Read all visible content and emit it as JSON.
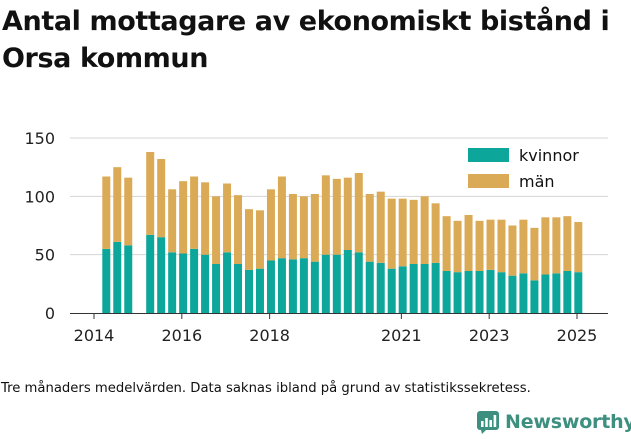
{
  "title": "Antal mottagare av ekonomiskt bistånd i Orsa kommun",
  "footnote": "Tre månaders medelvärden. Data saknas ibland på grund av statistikssekretess.",
  "brand": {
    "name": "Newsworthy"
  },
  "colors": {
    "kvinnor": "#0da69b",
    "man": "#dbaa56",
    "grid": "#d4d4d4",
    "axis": "#333333",
    "brand": "#3d8f80"
  },
  "chart_data": {
    "type": "bar",
    "stacked": true,
    "x_ticks": [
      {
        "label": "2014",
        "value": 2014.0
      },
      {
        "label": "2016",
        "value": 2016.0
      },
      {
        "label": "2018",
        "value": 2018.0
      },
      {
        "label": "2021",
        "value": 2021.0
      },
      {
        "label": "2023",
        "value": 2023.0
      },
      {
        "label": "2025",
        "value": 2025.0
      }
    ],
    "y_ticks": [
      0,
      50,
      100,
      150
    ],
    "ylim": [
      0,
      150
    ],
    "grid": true,
    "legend": {
      "position": "top-right",
      "items": [
        {
          "label": "kvinnor",
          "color_key": "kvinnor"
        },
        {
          "label": "män",
          "color_key": "man"
        }
      ]
    },
    "x": [
      2014.28,
      2014.53,
      2014.78,
      2015.28,
      2015.53,
      2015.78,
      2016.03,
      2016.28,
      2016.53,
      2016.78,
      2017.03,
      2017.28,
      2017.53,
      2017.78,
      2018.03,
      2018.28,
      2018.53,
      2018.78,
      2019.03,
      2019.28,
      2019.53,
      2019.78,
      2020.03,
      2020.28,
      2020.53,
      2020.78,
      2021.03,
      2021.28,
      2021.53,
      2021.78,
      2022.03,
      2022.28,
      2022.53,
      2022.78,
      2023.03,
      2023.28,
      2023.53,
      2023.78,
      2024.03,
      2024.28,
      2024.53,
      2024.78,
      2025.03
    ],
    "series": [
      {
        "name": "kvinnor",
        "color_key": "kvinnor",
        "values": [
          55,
          61,
          58,
          67,
          65,
          52,
          51,
          55,
          50,
          42,
          52,
          42,
          37,
          38,
          45,
          47,
          46,
          47,
          44,
          50,
          50,
          54,
          52,
          44,
          43,
          38,
          40,
          42,
          42,
          43,
          36,
          35,
          36,
          36,
          37,
          35,
          32,
          34,
          28,
          33,
          34,
          36,
          35
        ]
      },
      {
        "name": "män",
        "color_key": "man",
        "values": [
          62,
          64,
          58,
          71,
          67,
          54,
          62,
          62,
          62,
          58,
          59,
          59,
          52,
          50,
          61,
          70,
          56,
          53,
          58,
          68,
          65,
          62,
          68,
          58,
          61,
          60,
          58,
          55,
          58,
          51,
          47,
          44,
          48,
          43,
          43,
          45,
          43,
          46,
          45,
          49,
          48,
          47,
          43
        ]
      }
    ]
  }
}
